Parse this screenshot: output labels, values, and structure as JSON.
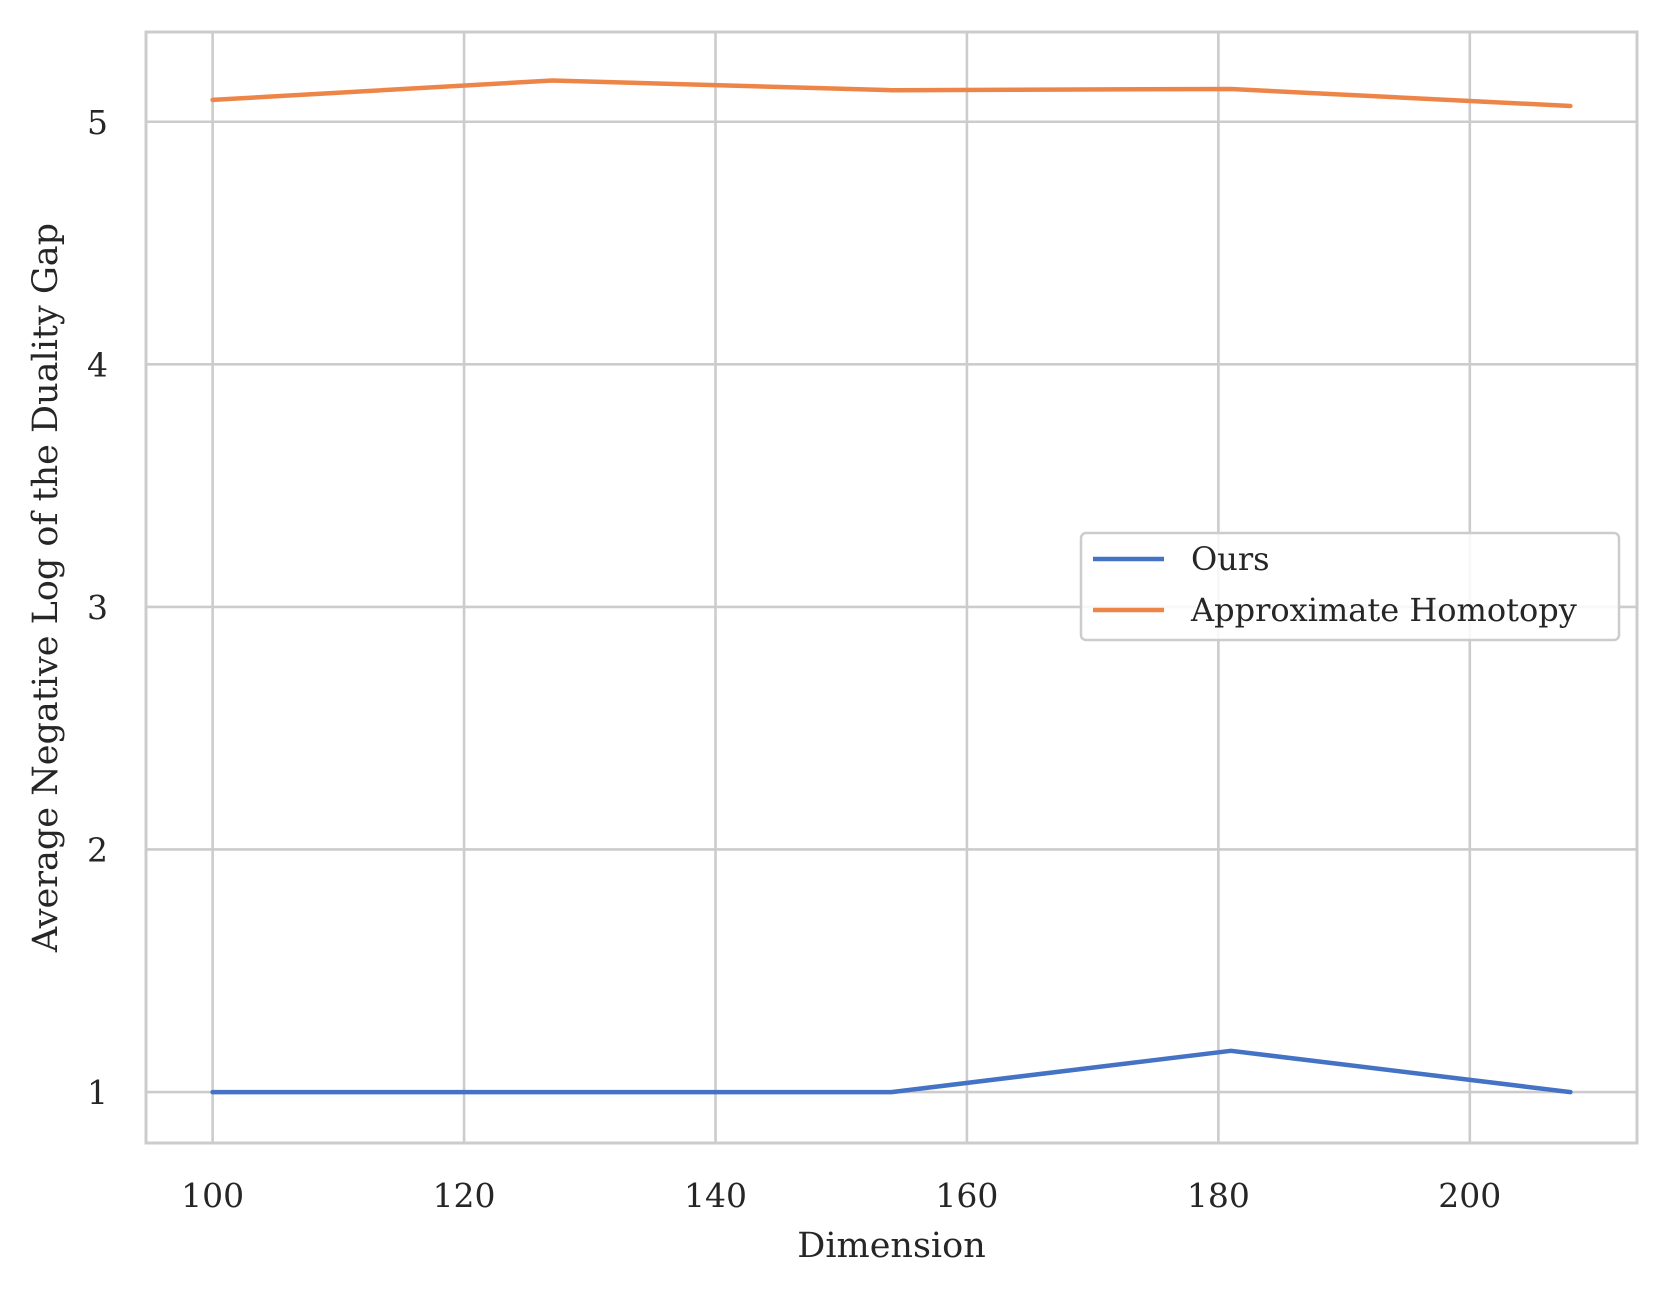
{
  "chart_data": {
    "type": "line",
    "title": "",
    "xlabel": "Dimension",
    "ylabel": "Average Negative Log of the Duality Gap",
    "xlim": [
      94.7,
      213.3
    ],
    "ylim": [
      0.79,
      5.37
    ],
    "xticks": [
      100,
      120,
      140,
      160,
      180,
      200
    ],
    "xtick_labels": [
      "100",
      "120",
      "140",
      "160",
      "180",
      "200"
    ],
    "yticks": [
      1,
      2,
      3,
      4,
      5
    ],
    "ytick_labels": [
      "1",
      "2",
      "3",
      "4",
      "5"
    ],
    "grid": true,
    "legend_position": "center-right",
    "series": [
      {
        "name": "Ours",
        "color": "#4472C4",
        "x": [
          100,
          127,
          154,
          181,
          208
        ],
        "y": [
          1.0,
          1.0,
          1.0,
          1.17,
          1.0
        ]
      },
      {
        "name": "Approximate Homotopy",
        "color": "#ED8548",
        "x": [
          100,
          127,
          154,
          181,
          208
        ],
        "y": [
          5.09,
          5.17,
          5.13,
          5.135,
          5.065
        ]
      }
    ]
  }
}
